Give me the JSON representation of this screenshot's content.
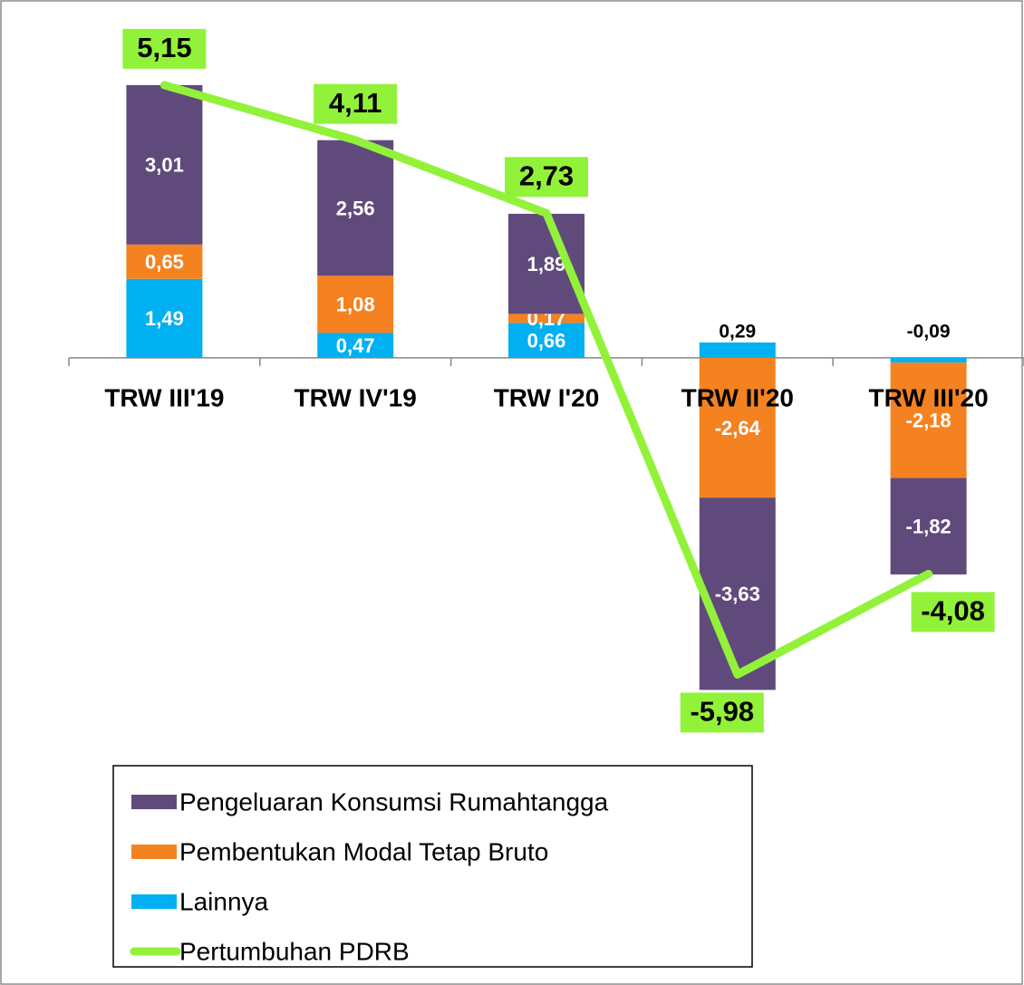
{
  "chart_data": {
    "type": "stacked-bar-line",
    "categories": [
      "TRW III'19",
      "TRW IV'19",
      "TRW I'20",
      "TRW II'20",
      "TRW III'20"
    ],
    "series": [
      {
        "name": "Pengeluaran Konsumsi Rumahtangga",
        "color": "#604a7b",
        "type": "bar",
        "values": [
          3.01,
          2.56,
          1.89,
          -3.63,
          -1.82
        ],
        "value_labels": [
          "3,01",
          "2,56",
          "1,89",
          "-3,63",
          "-1,82"
        ]
      },
      {
        "name": "Pembentukan Modal Tetap Bruto",
        "color": "#f58220",
        "type": "bar",
        "values": [
          0.65,
          1.08,
          0.17,
          -2.64,
          -2.18
        ],
        "value_labels": [
          "0,65",
          "1,08",
          "0,17",
          "-2,64",
          "-2,18"
        ]
      },
      {
        "name": "Lainnya",
        "color": "#00b0f0",
        "type": "bar",
        "values": [
          1.49,
          0.47,
          0.66,
          0.29,
          -0.09
        ],
        "value_labels": [
          "1,49",
          "0,47",
          "0,66",
          "0,29",
          "-0,09"
        ]
      },
      {
        "name": "Pertumbuhan PDRB",
        "color": "#92f23a",
        "type": "line",
        "values": [
          5.15,
          4.11,
          2.73,
          -5.98,
          -4.08
        ],
        "value_labels": [
          "5,15",
          "4,11",
          "2,73",
          "-5,98",
          "-4,08"
        ]
      }
    ],
    "stack_order": [
      2,
      1,
      0
    ],
    "ylim": [
      -7,
      6.5
    ]
  }
}
